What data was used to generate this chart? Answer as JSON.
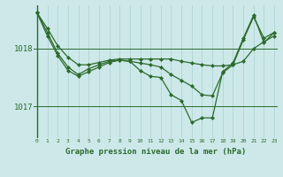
{
  "title": "Graphe pression niveau de la mer (hPa)",
  "bg_color": "#cce8e8",
  "line_color": "#2d6a2d",
  "grid_color": "#b0d4d4",
  "ylabel_ticks": [
    1017,
    1018
  ],
  "xlim": [
    -0.3,
    23.3
  ],
  "ylim": [
    1016.45,
    1018.75
  ],
  "series": [
    [
      1018.62,
      1018.35,
      1018.05,
      1017.85,
      1017.72,
      1017.72,
      1017.76,
      1017.8,
      1017.82,
      1017.82,
      1017.82,
      1017.82,
      1017.82,
      1017.82,
      1017.78,
      1017.75,
      1017.72,
      1017.7,
      1017.7,
      1017.72,
      1017.78,
      1018.0,
      1018.12,
      1018.22
    ],
    [
      1018.62,
      1018.28,
      1017.92,
      1017.68,
      1017.55,
      1017.65,
      1017.72,
      1017.78,
      1017.8,
      1017.78,
      1017.75,
      1017.72,
      1017.68,
      1017.55,
      1017.45,
      1017.35,
      1017.2,
      1017.18,
      1017.58,
      1017.72,
      1018.15,
      1018.55,
      1018.18,
      1018.28
    ],
    [
      1018.62,
      1018.22,
      1017.88,
      1017.62,
      1017.52,
      1017.6,
      1017.68,
      1017.76,
      1017.8,
      1017.78,
      1017.62,
      1017.52,
      1017.5,
      1017.2,
      1017.1,
      1016.72,
      1016.8,
      1016.8,
      1017.6,
      1017.75,
      1018.18,
      1018.58,
      1018.1,
      1018.28
    ]
  ]
}
